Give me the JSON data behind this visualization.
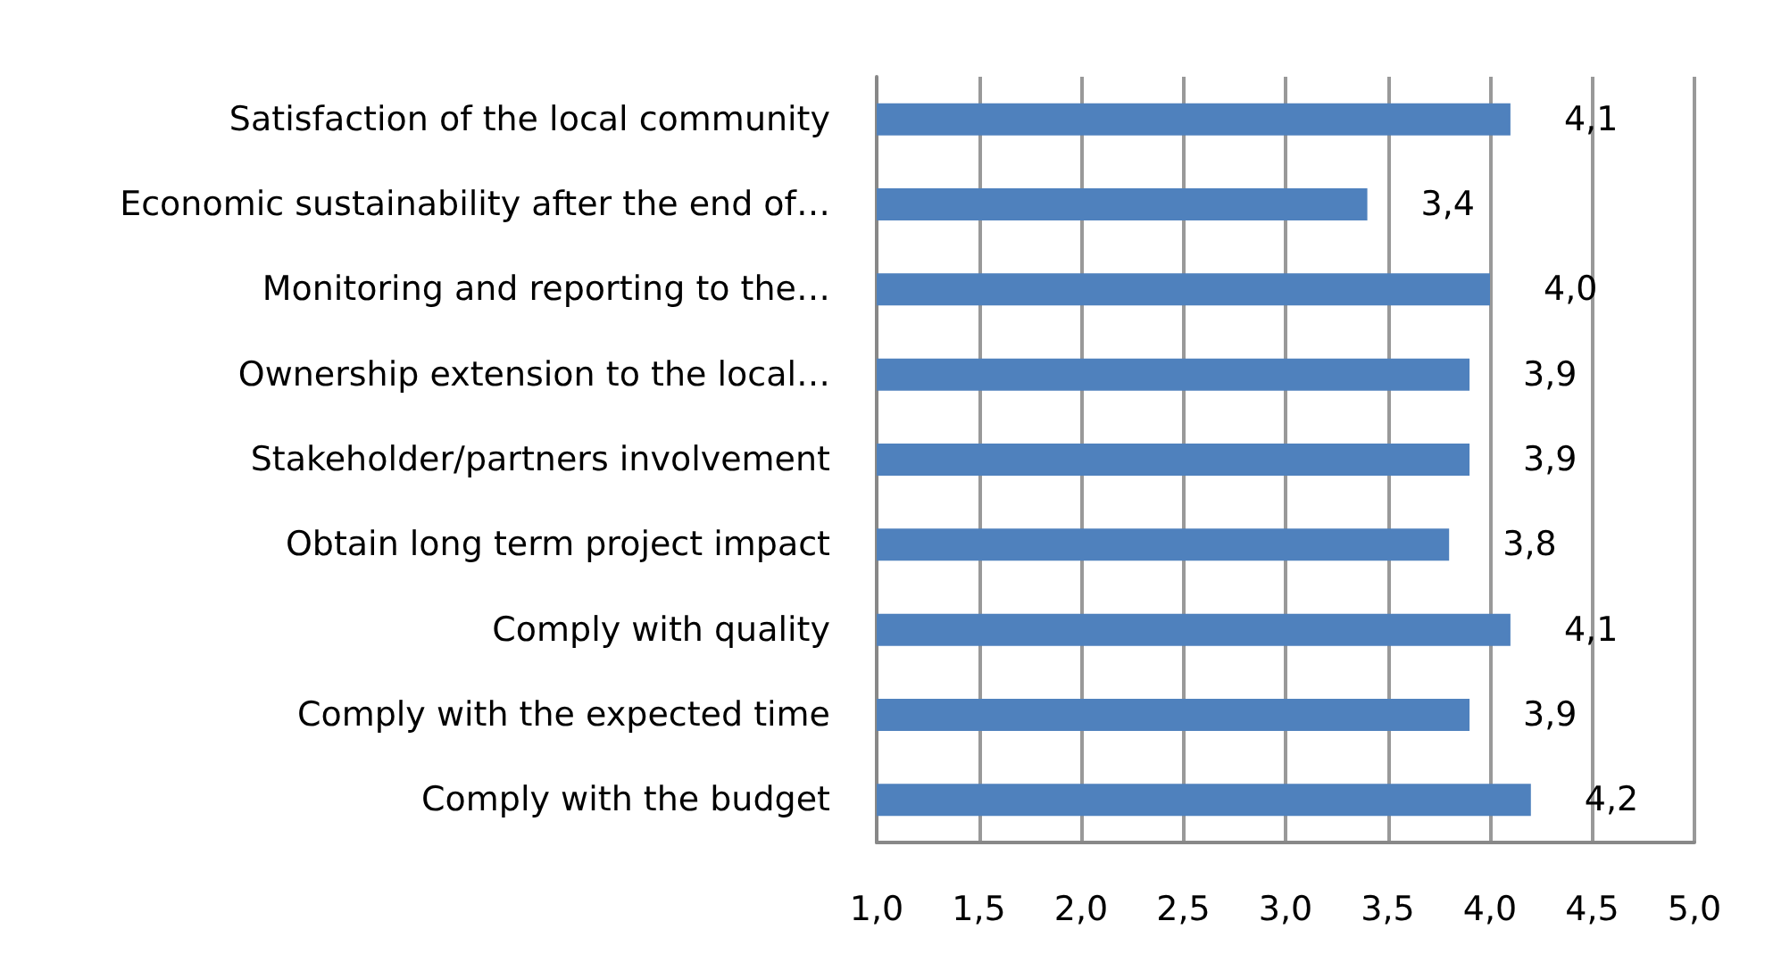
{
  "chart_data": {
    "type": "bar",
    "orientation": "horizontal",
    "categories": [
      "Satisfaction of the local community",
      "Economic sustainability after the end of…",
      "Monitoring and reporting to the…",
      "Ownership extension to the local…",
      "Stakeholder/partners involvement",
      "Obtain long term project impact",
      "Comply with quality",
      "Comply with the expected time",
      "Comply with the budget"
    ],
    "values": [
      4.1,
      3.4,
      4.0,
      3.9,
      3.9,
      3.8,
      4.1,
      3.9,
      4.2
    ],
    "value_labels": [
      "4,1",
      "3,4",
      "4,0",
      "3,9",
      "3,9",
      "3,8",
      "4,1",
      "3,9",
      "4,2"
    ],
    "color": "#4f81bd",
    "xlim": [
      1,
      5
    ],
    "xticks": [
      {
        "value": 1,
        "label": "1,0"
      },
      {
        "value": 1.5,
        "label": "1,5"
      },
      {
        "value": 2,
        "label": "2,0"
      },
      {
        "value": 2.5,
        "label": "2,5"
      },
      {
        "value": 3,
        "label": "3,0"
      },
      {
        "value": 3.5,
        "label": "3,5"
      },
      {
        "value": 4,
        "label": "4,0"
      },
      {
        "value": 4.5,
        "label": "4,5"
      },
      {
        "value": 5,
        "label": "5,0"
      }
    ],
    "grid": "x"
  }
}
